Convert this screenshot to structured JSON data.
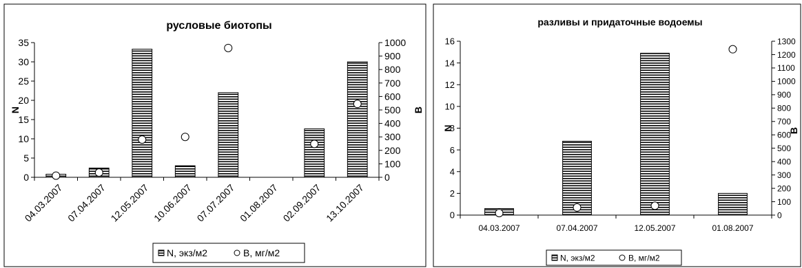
{
  "chart_data": [
    {
      "type": "bar",
      "title": "русловые биотопы",
      "categories": [
        "04.03.2007",
        "07.04.2007",
        "12.05.2007",
        "10.06.2007",
        "07.07.2007",
        "01.08.2007",
        "02.09.2007",
        "13.10.2007"
      ],
      "series": [
        {
          "name": "N, экз/м2",
          "type": "bar",
          "axis": "left",
          "values": [
            0.8,
            2.4,
            33.3,
            3.0,
            22.0,
            0,
            12.6,
            30.0
          ]
        },
        {
          "name": "B, мг/м2",
          "type": "scatter",
          "axis": "right",
          "values": [
            12,
            35,
            280,
            300,
            null,
            null,
            248,
            545
          ]
        }
      ],
      "ylabel": "N",
      "y2label": "B",
      "ylim": [
        0,
        35
      ],
      "y2lim": [
        0,
        1000
      ],
      "yticks": [
        "0",
        "5",
        "10",
        "15",
        "20",
        "25",
        "30",
        "35"
      ],
      "y2ticks": [
        "0",
        "100",
        "200",
        "300",
        "400",
        "500",
        "600",
        "700",
        "800",
        "900",
        "1000"
      ],
      "outlier": {
        "category": "07.07.2007",
        "value": 960
      },
      "legend": [
        "N, экз/м2",
        "B, мг/м2"
      ],
      "legend_position": "bottom",
      "grid": false
    },
    {
      "type": "bar",
      "title": "разливы и придаточные водоемы",
      "categories": [
        "04.03.2007",
        "07.04.2007",
        "12.05.2007",
        "01.08.2007"
      ],
      "series": [
        {
          "name": "N, экз/м2",
          "type": "bar",
          "axis": "left",
          "values": [
            0.6,
            6.8,
            14.9,
            2.0
          ]
        },
        {
          "name": "B, мг/м2",
          "type": "scatter",
          "axis": "right",
          "values": [
            15,
            57,
            70,
            1240
          ]
        }
      ],
      "ylabel": "N",
      "y2label": "B",
      "ylim": [
        0,
        16
      ],
      "y2lim": [
        0,
        1300
      ],
      "yticks": [
        "0",
        "2",
        "4",
        "6",
        "8",
        "10",
        "12",
        "14",
        "16"
      ],
      "y2ticks": [
        "0",
        "100",
        "200",
        "300",
        "400",
        "500",
        "600",
        "700",
        "800",
        "900",
        "1000",
        "1100",
        "1200",
        "1300"
      ],
      "legend": [
        "N, экз/м2",
        "B, мг/м2"
      ],
      "legend_position": "bottom",
      "grid": false
    }
  ]
}
